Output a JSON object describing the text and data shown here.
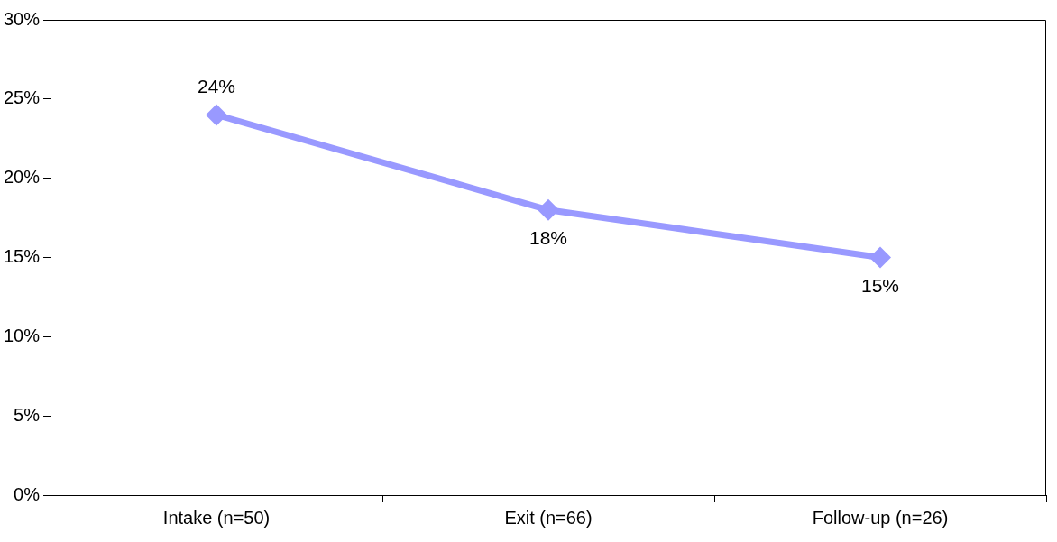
{
  "chart_data": {
    "type": "line",
    "categories": [
      "Intake (n=50)",
      "Exit (n=66)",
      "Follow-up (n=26)"
    ],
    "series": [
      {
        "color": "#9999ff",
        "values": [
          24,
          18,
          15
        ],
        "value_labels": [
          "24%",
          "18%",
          "15%"
        ]
      }
    ],
    "ylim": [
      0,
      30
    ],
    "yticks": [
      {
        "value": 0,
        "label": "0%"
      },
      {
        "value": 5,
        "label": "5%"
      },
      {
        "value": 10,
        "label": "10%"
      },
      {
        "value": 15,
        "label": "15%"
      },
      {
        "value": 20,
        "label": "20%"
      },
      {
        "value": 25,
        "label": "25%"
      },
      {
        "value": 30,
        "label": "30%"
      }
    ],
    "grid": false,
    "legend": false,
    "marker": "diamond",
    "line_style": "solid"
  }
}
